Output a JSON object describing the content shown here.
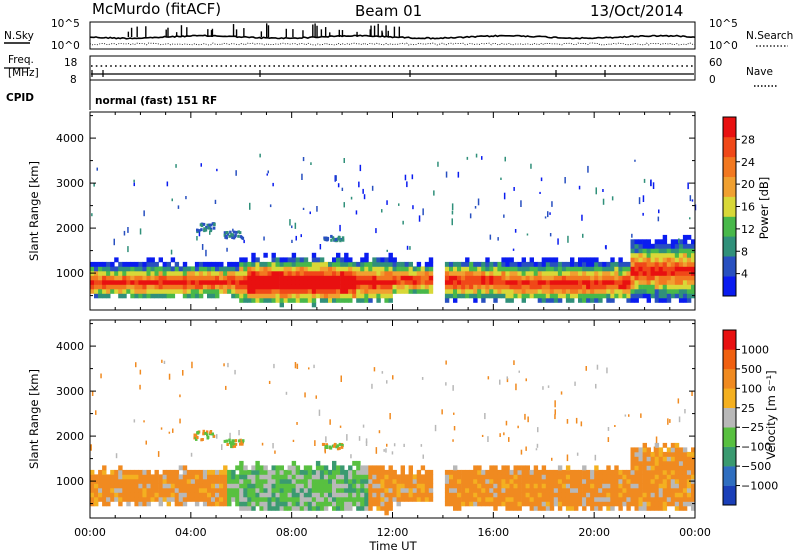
{
  "header": {
    "station": "McMurdo (fitACF)",
    "beam": "Beam 01",
    "date": "13/Oct/2014"
  },
  "top_panels": {
    "nsky_label": "N.Sky",
    "nsearch_label": "N.Search",
    "noise_ticks": [
      "10^5",
      "10^0"
    ],
    "freq_label_1": "Freq.",
    "freq_label_2": "[MHz]",
    "freq_ticks": [
      "18",
      "8"
    ],
    "nave_label": "Nave",
    "nave_ticks": [
      "60",
      "0"
    ],
    "cpid_label": "CPID",
    "cpid_text": "normal (fast) 151 RF"
  },
  "chart_data": [
    {
      "type": "heatmap",
      "name": "power",
      "ylabel": "Slant Range [km]",
      "yticks": [
        "1000",
        "2000",
        "3000",
        "4000"
      ],
      "ylim": [
        180,
        4580
      ],
      "xlim": [
        0,
        24
      ],
      "colorbar_label": "Power [dB]",
      "colorbar_ticks": [
        "4",
        "8",
        "12",
        "16",
        "20",
        "24",
        "28"
      ],
      "colors": [
        "#0a1cf0",
        "#2850c0",
        "#30907a",
        "#48b84a",
        "#d8d838",
        "#f0a030",
        "#f27820",
        "#f04818",
        "#e81010"
      ]
    },
    {
      "type": "heatmap",
      "name": "velocity",
      "ylabel": "Slant Range [km]",
      "yticks": [
        "1000",
        "2000",
        "3000",
        "4000"
      ],
      "ylim": [
        180,
        4580
      ],
      "xlim": [
        0,
        24
      ],
      "colorbar_label": "Velocity [m s⁻¹]",
      "colorbar_ticks": [
        "1000",
        "500",
        "100",
        "25",
        "−25",
        "−100",
        "−500",
        "−1000"
      ],
      "colors": [
        "#1a3fb8",
        "#2f6ec0",
        "#3a9a70",
        "#58c040",
        "#b8b8b8",
        "#f4b020",
        "#f08a20",
        "#f06010",
        "#e81010"
      ]
    }
  ],
  "xaxis": {
    "label": "Time UT",
    "ticks": [
      "00:00",
      "04:00",
      "08:00",
      "12:00",
      "16:00",
      "20:00",
      "00:00"
    ]
  }
}
